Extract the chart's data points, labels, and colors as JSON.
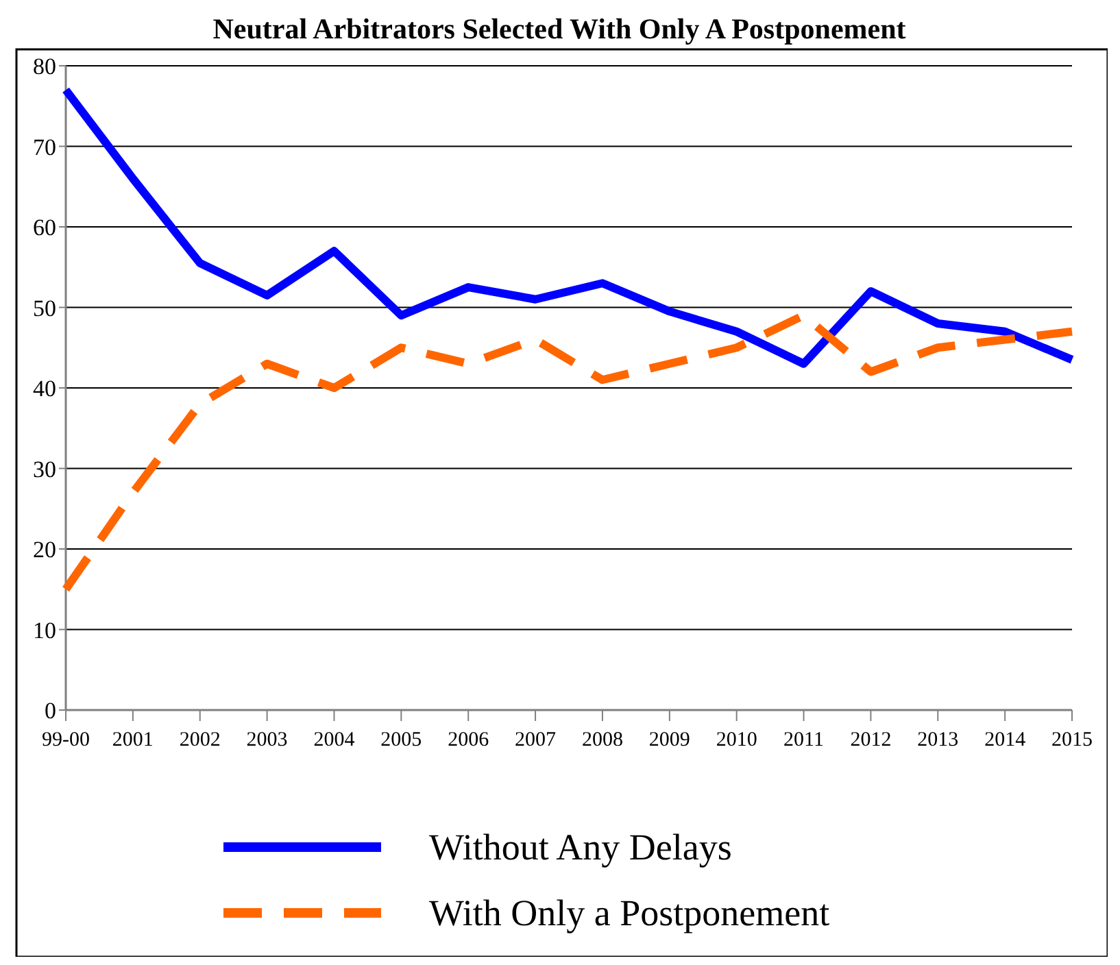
{
  "chart_data": {
    "type": "line",
    "title": "Neutral Arbitrators Selected With Only A Postponement",
    "categories": [
      "99-00",
      "2001",
      "2002",
      "2003",
      "2004",
      "2005",
      "2006",
      "2007",
      "2008",
      "2009",
      "2010",
      "2011",
      "2012",
      "2013",
      "2014",
      "2015"
    ],
    "series": [
      {
        "name": "Without Any Delays",
        "color": "#0000ff",
        "line_style": "solid",
        "values": [
          77,
          66,
          55.5,
          51.5,
          57,
          49,
          52.5,
          51,
          53,
          49.5,
          47,
          43,
          52,
          48,
          47,
          43.5
        ]
      },
      {
        "name": "With Only a Postponement",
        "color": "#ff6600",
        "line_style": "dashed",
        "values": [
          15,
          27,
          38,
          43,
          40,
          45,
          43,
          46,
          41,
          43,
          45,
          49,
          42,
          45,
          46,
          47
        ]
      }
    ],
    "ylim": [
      0,
      80
    ],
    "yticks": [
      0,
      10,
      20,
      30,
      40,
      50,
      60,
      70,
      80
    ],
    "grid": "y",
    "legend": "bottom",
    "marker": "none"
  }
}
